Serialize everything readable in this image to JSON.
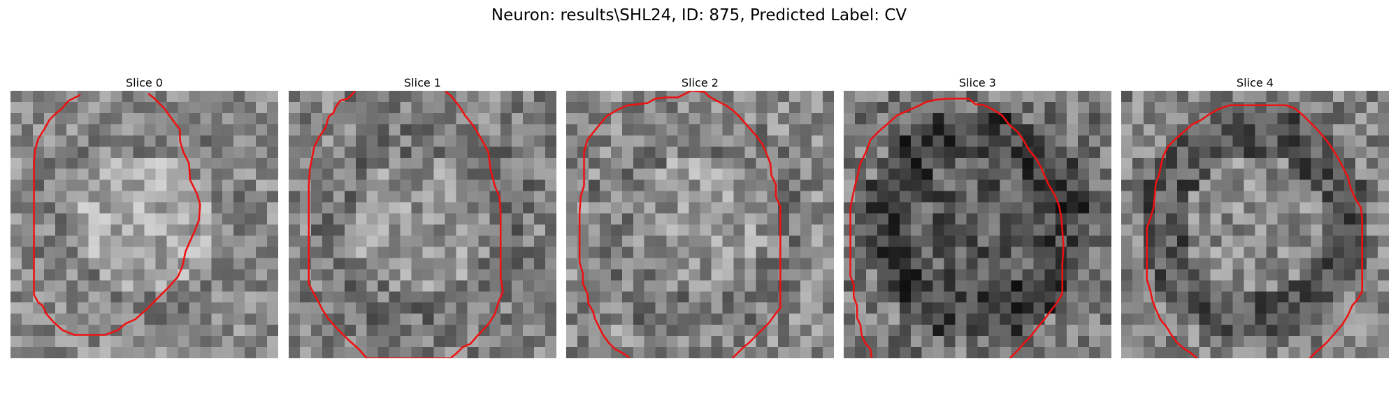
{
  "figure": {
    "title": "Neuron: results\\SHL24, ID: 875, Predicted Label: CV"
  },
  "colors": {
    "contour": "#ee1111",
    "colormap": "gray"
  },
  "panels": [
    {
      "title": "Slice 0",
      "contour_style": "solid red polyline, irregular ellipse, top short gap",
      "contour": [
        [
          6.2,
          0.4
        ],
        [
          5.2,
          0.9
        ],
        [
          4.6,
          1.6
        ],
        [
          4.0,
          2.1
        ],
        [
          3.5,
          2.6
        ],
        [
          3.0,
          3.5
        ],
        [
          2.5,
          4.3
        ],
        [
          2.2,
          5.3
        ],
        [
          2.1,
          6.5
        ],
        [
          2.1,
          8.0
        ],
        [
          2.1,
          9.5
        ],
        [
          2.1,
          11.0
        ],
        [
          2.1,
          12.5
        ],
        [
          2.1,
          14.0
        ],
        [
          2.1,
          15.5
        ],
        [
          2.1,
          17.0
        ],
        [
          2.1,
          18.3
        ],
        [
          2.5,
          19.0
        ],
        [
          2.9,
          19.3
        ],
        [
          3.2,
          20.0
        ],
        [
          3.9,
          20.8
        ],
        [
          4.7,
          21.5
        ],
        [
          5.7,
          21.9
        ],
        [
          7.0,
          21.9
        ],
        [
          8.5,
          21.9
        ],
        [
          9.6,
          21.5
        ],
        [
          10.3,
          20.9
        ],
        [
          11.2,
          20.5
        ],
        [
          12.2,
          19.6
        ],
        [
          13.2,
          18.6
        ],
        [
          14.2,
          17.6
        ],
        [
          15.0,
          16.7
        ],
        [
          15.4,
          15.8
        ],
        [
          15.7,
          14.4
        ],
        [
          16.1,
          13.5
        ],
        [
          16.5,
          12.6
        ],
        [
          16.9,
          11.6
        ],
        [
          17.0,
          10.2
        ],
        [
          16.7,
          9.2
        ],
        [
          16.1,
          8.0
        ],
        [
          16.0,
          6.5
        ],
        [
          15.5,
          5.5
        ],
        [
          15.2,
          4.5
        ],
        [
          15.2,
          3.5
        ],
        [
          14.6,
          2.7
        ],
        [
          13.8,
          1.6
        ],
        [
          13.2,
          1.0
        ],
        [
          12.8,
          0.6
        ],
        [
          12.4,
          0.3
        ]
      ]
    },
    {
      "title": "Slice 1",
      "contour_style": "solid red polyline, large octagonal outline, top gap",
      "contour": [
        [
          5.9,
          0.1
        ],
        [
          5.3,
          0.7
        ],
        [
          4.6,
          0.9
        ],
        [
          4.2,
          1.5
        ],
        [
          4.0,
          2.0
        ],
        [
          3.6,
          2.3
        ],
        [
          3.3,
          3.3
        ],
        [
          2.7,
          4.2
        ],
        [
          2.3,
          5.0
        ],
        [
          2.1,
          6.0
        ],
        [
          1.9,
          7.0
        ],
        [
          1.8,
          8.5
        ],
        [
          1.8,
          10.0
        ],
        [
          1.8,
          11.5
        ],
        [
          1.8,
          13.0
        ],
        [
          1.8,
          14.5
        ],
        [
          1.8,
          16.0
        ],
        [
          1.8,
          17.3
        ],
        [
          2.1,
          17.9
        ],
        [
          2.6,
          18.8
        ],
        [
          3.0,
          19.6
        ],
        [
          3.5,
          20.4
        ],
        [
          4.3,
          21.3
        ],
        [
          5.3,
          22.3
        ],
        [
          6.3,
          23.2
        ],
        [
          7.0,
          24.0
        ],
        [
          8.5,
          24.0
        ],
        [
          10.0,
          24.0
        ],
        [
          11.5,
          24.0
        ],
        [
          13.0,
          24.0
        ],
        [
          14.5,
          24.0
        ],
        [
          15.0,
          23.6
        ],
        [
          15.6,
          23.0
        ],
        [
          16.3,
          22.7
        ],
        [
          16.9,
          22.0
        ],
        [
          17.5,
          21.4
        ],
        [
          18.0,
          20.8
        ],
        [
          18.5,
          20.0
        ],
        [
          18.8,
          19.0
        ],
        [
          19.2,
          18.0
        ],
        [
          19.0,
          16.8
        ],
        [
          19.0,
          15.5
        ],
        [
          19.0,
          14.0
        ],
        [
          19.0,
          12.5
        ],
        [
          19.0,
          11.0
        ],
        [
          18.9,
          9.5
        ],
        [
          18.5,
          8.6
        ],
        [
          18.1,
          7.1
        ],
        [
          17.9,
          5.5
        ],
        [
          17.2,
          4.2
        ],
        [
          16.6,
          3.2
        ],
        [
          15.8,
          2.2
        ],
        [
          15.3,
          1.4
        ],
        [
          14.9,
          0.9
        ],
        [
          14.5,
          0.4
        ],
        [
          14.1,
          0.1
        ]
      ]
    },
    {
      "title": "Slice 2",
      "contour_style": "solid red polyline, open at bottom center",
      "contour": [
        [
          5.6,
          23.9
        ],
        [
          5.0,
          23.5
        ],
        [
          4.4,
          23.2
        ],
        [
          3.8,
          22.6
        ],
        [
          3.3,
          21.9
        ],
        [
          3.0,
          21.3
        ],
        [
          2.6,
          20.5
        ],
        [
          2.4,
          19.8
        ],
        [
          2.0,
          19.1
        ],
        [
          1.9,
          18.2
        ],
        [
          1.5,
          17.3
        ],
        [
          1.5,
          16.4
        ],
        [
          1.2,
          15.4
        ],
        [
          1.2,
          14.0
        ],
        [
          1.2,
          12.5
        ],
        [
          1.2,
          11.0
        ],
        [
          1.3,
          9.5
        ],
        [
          1.6,
          8.5
        ],
        [
          1.6,
          7.0
        ],
        [
          1.6,
          5.5
        ],
        [
          1.9,
          4.4
        ],
        [
          2.7,
          3.4
        ],
        [
          3.6,
          2.3
        ],
        [
          4.6,
          1.7
        ],
        [
          5.5,
          1.3
        ],
        [
          6.5,
          1.2
        ],
        [
          7.3,
          1.1
        ],
        [
          8.0,
          0.7
        ],
        [
          9.0,
          0.6
        ],
        [
          10.0,
          0.6
        ],
        [
          10.6,
          0.3
        ],
        [
          11.2,
          0.0
        ],
        [
          12.4,
          0.1
        ],
        [
          12.8,
          0.5
        ],
        [
          13.5,
          0.9
        ],
        [
          14.3,
          1.3
        ],
        [
          15.0,
          1.8
        ],
        [
          15.6,
          2.4
        ],
        [
          16.3,
          3.2
        ],
        [
          17.0,
          4.0
        ],
        [
          17.6,
          4.8
        ],
        [
          17.9,
          5.5
        ],
        [
          18.3,
          6.5
        ],
        [
          18.4,
          7.6
        ],
        [
          18.8,
          8.4
        ],
        [
          18.8,
          9.5
        ],
        [
          19.2,
          10.4
        ],
        [
          19.2,
          11.5
        ],
        [
          19.2,
          12.8
        ],
        [
          19.2,
          14.0
        ],
        [
          19.2,
          15.5
        ],
        [
          19.2,
          17.0
        ],
        [
          19.2,
          18.5
        ],
        [
          19.2,
          19.5
        ],
        [
          18.7,
          20.1
        ],
        [
          18.2,
          20.8
        ],
        [
          17.6,
          21.4
        ],
        [
          17.0,
          22.0
        ],
        [
          16.4,
          22.6
        ],
        [
          15.8,
          23.1
        ],
        [
          15.2,
          23.7
        ],
        [
          14.9,
          24.0
        ]
      ]
    },
    {
      "title": "Slice 3",
      "contour_style": "solid red polyline, large ring, open at bottom",
      "contour": [
        [
          2.5,
          24.0
        ],
        [
          2.4,
          23.2
        ],
        [
          1.9,
          22.6
        ],
        [
          1.6,
          21.9
        ],
        [
          1.5,
          21.0
        ],
        [
          1.2,
          20.4
        ],
        [
          1.2,
          19.3
        ],
        [
          0.9,
          18.5
        ],
        [
          0.9,
          17.4
        ],
        [
          0.6,
          16.6
        ],
        [
          0.6,
          15.0
        ],
        [
          0.6,
          13.5
        ],
        [
          0.6,
          12.0
        ],
        [
          0.6,
          10.5
        ],
        [
          0.9,
          9.0
        ],
        [
          1.2,
          7.8
        ],
        [
          1.5,
          6.5
        ],
        [
          2.0,
          5.5
        ],
        [
          2.4,
          4.4
        ],
        [
          3.2,
          3.6
        ],
        [
          4.0,
          2.9
        ],
        [
          4.8,
          2.2
        ],
        [
          5.7,
          1.8
        ],
        [
          6.6,
          1.4
        ],
        [
          7.4,
          1.0
        ],
        [
          8.3,
          0.8
        ],
        [
          9.3,
          0.7
        ],
        [
          10.3,
          0.7
        ],
        [
          11.2,
          0.7
        ],
        [
          11.8,
          1.2
        ],
        [
          12.6,
          1.3
        ],
        [
          13.4,
          1.7
        ],
        [
          14.2,
          2.2
        ],
        [
          14.8,
          3.0
        ],
        [
          15.6,
          3.7
        ],
        [
          16.1,
          4.4
        ],
        [
          16.6,
          5.3
        ],
        [
          17.2,
          6.0
        ],
        [
          17.7,
          6.9
        ],
        [
          18.0,
          7.6
        ],
        [
          18.4,
          8.5
        ],
        [
          18.9,
          9.3
        ],
        [
          19.3,
          10.3
        ],
        [
          19.5,
          11.3
        ],
        [
          19.6,
          12.5
        ],
        [
          19.7,
          14.0
        ],
        [
          19.6,
          15.5
        ],
        [
          19.6,
          17.0
        ],
        [
          19.6,
          18.2
        ],
        [
          19.2,
          18.9
        ],
        [
          18.6,
          19.7
        ],
        [
          18.0,
          20.5
        ],
        [
          17.4,
          21.2
        ],
        [
          16.8,
          22.0
        ],
        [
          16.2,
          22.6
        ],
        [
          15.6,
          23.3
        ],
        [
          14.9,
          24.0
        ]
      ]
    },
    {
      "title": "Slice 4",
      "contour_style": "solid red polyline, rounded box, open at bottom",
      "contour": [
        [
          6.8,
          24.0
        ],
        [
          6.2,
          23.5
        ],
        [
          5.6,
          23.1
        ],
        [
          5.0,
          22.6
        ],
        [
          4.5,
          21.9
        ],
        [
          4.0,
          21.1
        ],
        [
          3.5,
          20.5
        ],
        [
          3.1,
          19.6
        ],
        [
          2.8,
          18.8
        ],
        [
          2.6,
          17.9
        ],
        [
          2.3,
          16.9
        ],
        [
          2.3,
          15.9
        ],
        [
          2.3,
          14.8
        ],
        [
          2.3,
          13.6
        ],
        [
          2.3,
          12.3
        ],
        [
          2.6,
          11.5
        ],
        [
          2.9,
          10.5
        ],
        [
          3.0,
          9.5
        ],
        [
          3.1,
          8.3
        ],
        [
          3.4,
          7.5
        ],
        [
          3.6,
          6.5
        ],
        [
          3.8,
          5.8
        ],
        [
          4.2,
          5.0
        ],
        [
          4.9,
          4.3
        ],
        [
          5.7,
          3.6
        ],
        [
          6.4,
          3.0
        ],
        [
          7.2,
          2.6
        ],
        [
          7.9,
          2.1
        ],
        [
          8.8,
          1.6
        ],
        [
          9.7,
          1.3
        ],
        [
          10.9,
          1.3
        ],
        [
          12.2,
          1.3
        ],
        [
          13.5,
          1.3
        ],
        [
          14.8,
          1.3
        ],
        [
          15.6,
          1.6
        ],
        [
          16.3,
          2.2
        ],
        [
          16.9,
          2.8
        ],
        [
          17.5,
          3.4
        ],
        [
          18.2,
          4.2
        ],
        [
          18.8,
          5.0
        ],
        [
          19.3,
          5.8
        ],
        [
          19.8,
          6.7
        ],
        [
          20.3,
          7.7
        ],
        [
          20.6,
          8.8
        ],
        [
          21.0,
          9.7
        ],
        [
          21.5,
          10.5
        ],
        [
          21.6,
          11.6
        ],
        [
          21.6,
          12.8
        ],
        [
          21.6,
          14.0
        ],
        [
          21.6,
          15.5
        ],
        [
          21.6,
          17.0
        ],
        [
          21.6,
          18.0
        ],
        [
          21.2,
          18.7
        ],
        [
          20.7,
          19.3
        ],
        [
          20.3,
          20.2
        ],
        [
          19.8,
          21.0
        ],
        [
          19.2,
          21.7
        ],
        [
          18.6,
          22.4
        ],
        [
          18.0,
          23.0
        ],
        [
          17.4,
          23.5
        ],
        [
          16.9,
          24.0
        ]
      ]
    }
  ]
}
